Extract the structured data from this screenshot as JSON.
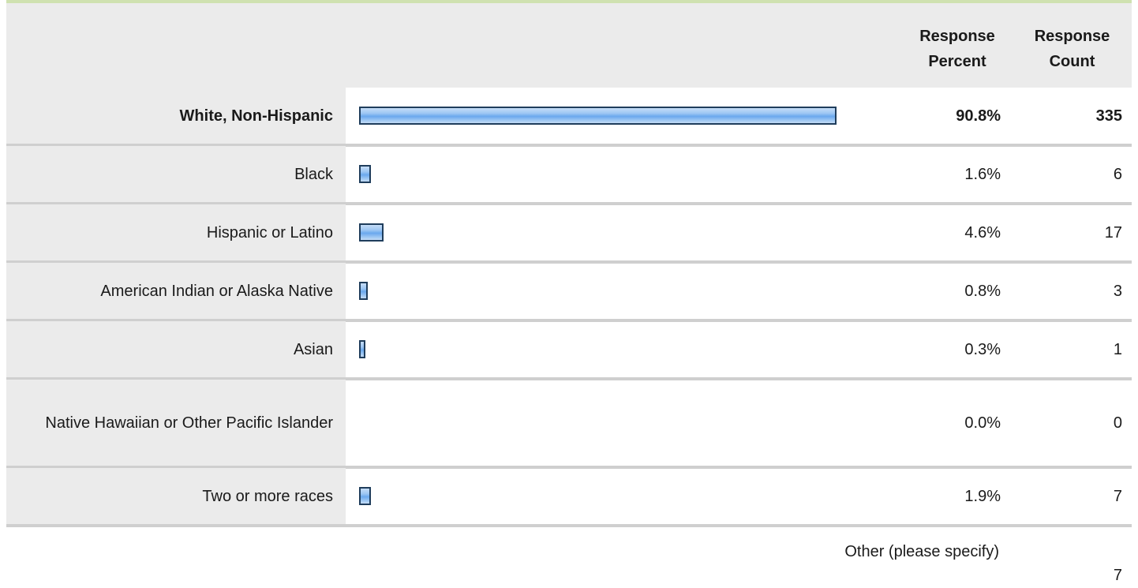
{
  "chart_data": {
    "type": "bar",
    "orientation": "horizontal",
    "header": {
      "percent_label_line1": "Response",
      "percent_label_line2": "Percent",
      "count_label_line1": "Response",
      "count_label_line2": "Count"
    },
    "categories": [
      "White, Non-Hispanic",
      "Black",
      "Hispanic or Latino",
      "American Indian or Alaska Native",
      "Asian",
      "Native Hawaiian or Other Pacific Islander",
      "Two or more races"
    ],
    "percent_labels": [
      "90.8%",
      "1.6%",
      "4.6%",
      "0.8%",
      "0.3%",
      "0.0%",
      "1.9%"
    ],
    "values": [
      90.8,
      1.6,
      4.6,
      0.8,
      0.3,
      0.0,
      1.9
    ],
    "counts": [
      335,
      6,
      17,
      3,
      1,
      0,
      7
    ],
    "highlighted_category": "White, Non-Hispanic",
    "other": {
      "label": "Other (please specify)",
      "count": 7
    },
    "colors": {
      "bar_fill": "#9cc6f3",
      "bar_border": "#1f3d5c",
      "label_background": "#ebebeb",
      "separator": "#cfcfcf",
      "top_rule": "#cfe1b0"
    }
  }
}
